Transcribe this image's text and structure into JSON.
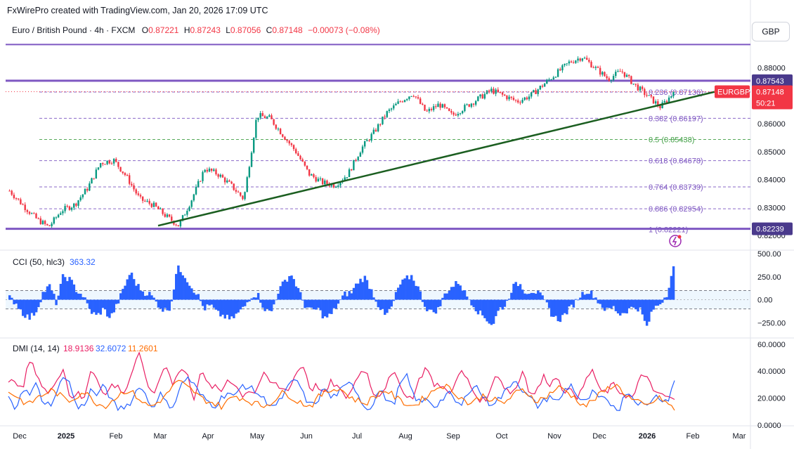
{
  "header": {
    "credit": "FxWirePro created with TradingView.com, Jan 20, 2026 17:09 UTC"
  },
  "symbol": {
    "name": "Euro / British Pound · 4h · FXCM",
    "o_label": "O",
    "o": "0.87221",
    "h_label": "H",
    "h": "0.87243",
    "l_label": "L",
    "l": "0.87056",
    "c_label": "C",
    "c": "0.87148",
    "change": "−0.00073 (−0.08%)"
  },
  "currency_button": "GBP",
  "colors": {
    "candle_up": "#089981",
    "candle_down": "#f23645",
    "trendline": "#1b5e20",
    "level_line": "#7e57c2",
    "cci": "#2962ff",
    "dmi_plus": "#2962ff",
    "dmi_minus": "#e91e63",
    "adx": "#ff6d00"
  },
  "chart_data": [
    {
      "type": "candlestick",
      "title": "Euro / British Pound · 4h · FXCM",
      "yaxis": {
        "ticks": [
          0.82,
          0.83,
          0.84,
          0.85,
          0.86,
          0.88
        ],
        "tick_labels": [
          "0.82000",
          "0.83000",
          "0.84000",
          "0.85000",
          "0.86000",
          "0.88000"
        ],
        "ylim": [
          0.8175,
          0.8905
        ]
      },
      "xaxis": {
        "tick_labels": [
          "Dec",
          "2025",
          "Feb",
          "Mar",
          "Apr",
          "May",
          "Jun",
          "Jul",
          "Aug",
          "Sep",
          "Oct",
          "Nov",
          "Dec",
          "2026",
          "Feb",
          "Mar"
        ]
      },
      "price_path": [
        0.836,
        0.831,
        0.8262,
        0.823,
        0.829,
        0.831,
        0.837,
        0.846,
        0.847,
        0.841,
        0.833,
        0.831,
        0.827,
        0.8235,
        0.833,
        0.844,
        0.842,
        0.838,
        0.833,
        0.863,
        0.862,
        0.856,
        0.85,
        0.842,
        0.839,
        0.838,
        0.842,
        0.851,
        0.857,
        0.864,
        0.868,
        0.871,
        0.864,
        0.867,
        0.863,
        0.866,
        0.869,
        0.872,
        0.87,
        0.868,
        0.87,
        0.874,
        0.878,
        0.882,
        0.884,
        0.88,
        0.876,
        0.879,
        0.874,
        0.87,
        0.866,
        0.871
      ],
      "horizontal_levels": [
        {
          "label": "0.87543",
          "value": 0.87543
        },
        {
          "label": "0.82239",
          "value": 0.82239
        }
      ],
      "upper_line_value": 0.8884,
      "fibonacci": [
        {
          "label": "0.236 (0.87136)",
          "value": 0.87136
        },
        {
          "label": "0.382 (0.86197)",
          "value": 0.86197
        },
        {
          "label": "0.5 (0.85438)",
          "value": 0.85438
        },
        {
          "label": "0.618 (0.84678)",
          "value": 0.84678
        },
        {
          "label": "0.764 (0.83739)",
          "value": 0.83739
        },
        {
          "label": "0.886 (0.82954)",
          "value": 0.82954
        },
        {
          "label": "1 (0.82221)",
          "value": 0.82221
        }
      ],
      "trendline": {
        "start_value": 0.8235,
        "end_value": 0.8715
      },
      "last_price": {
        "symbol": "EURGBP",
        "value": 0.87148,
        "label": "0.87148",
        "countdown": "50:21"
      }
    },
    {
      "type": "line",
      "title": "CCI (50, hlc3)",
      "value_label": "363.32",
      "yaxis": {
        "tick_labels": [
          "500.00",
          "250.00",
          "0.00",
          "−250.00"
        ],
        "ylim": [
          -400,
          500
        ]
      },
      "band": [
        100,
        -100
      ],
      "series": [
        {
          "values": [
            20,
            -40,
            -150,
            -200,
            -120,
            80,
            150,
            -40,
            260,
            220,
            100,
            40,
            -120,
            -180,
            -100,
            -200,
            -60,
            120,
            300,
            160,
            80,
            60,
            -40,
            -120,
            -80,
            350,
            280,
            150,
            60,
            -100,
            -60,
            -150,
            -180,
            -220,
            -150,
            -80,
            40,
            60,
            -100,
            -140,
            80,
            200,
            280,
            120,
            -60,
            -120,
            -100,
            -200,
            -160,
            -40,
            60,
            80,
            200,
            240,
            100,
            -60,
            -180,
            -80,
            140,
            220,
            260,
            120,
            -80,
            -140,
            -100,
            80,
            140,
            200,
            60,
            -40,
            -140,
            -200,
            -280,
            -100,
            -60,
            140,
            180,
            80,
            100,
            60,
            -40,
            -180,
            -220,
            -140,
            -60,
            40,
            100,
            60,
            -40,
            -120,
            -80,
            -160,
            -120,
            -80,
            -100,
            -300,
            -100,
            -40,
            60,
            363
          ]
        }
      ]
    },
    {
      "type": "line",
      "title": "DMI (14, 14)",
      "yaxis": {
        "tick_labels": [
          "60.0000",
          "40.0000",
          "20.0000",
          "0.0000"
        ],
        "ylim": [
          -0.5,
          63
        ]
      },
      "series": [
        {
          "name": "18.9136",
          "color": "#e91e63",
          "values": [
            30,
            35,
            24,
            48,
            40,
            28,
            22,
            35,
            42,
            20,
            24,
            18,
            42,
            35,
            20,
            30,
            28,
            24,
            40,
            52,
            36,
            20,
            35,
            45,
            30,
            42,
            38,
            20,
            40,
            30,
            28,
            25,
            35,
            30,
            22,
            26,
            24,
            38,
            32,
            30,
            26,
            28,
            40,
            44,
            26,
            30,
            22,
            32,
            28,
            20,
            26,
            38,
            42,
            25,
            22,
            30,
            38,
            32,
            20,
            22,
            36,
            44,
            28,
            30,
            24,
            30,
            40,
            32,
            22,
            18,
            22,
            40,
            30,
            24,
            28,
            42,
            22,
            26,
            36,
            30,
            38,
            22,
            28,
            20,
            32,
            42,
            26,
            24,
            30,
            25,
            22,
            20,
            35,
            38,
            22,
            24,
            20,
            19
          ]
        },
        {
          "name": "32.6072",
          "color": "#2962ff",
          "values": [
            20,
            12,
            28,
            22,
            30,
            18,
            15,
            22,
            38,
            30,
            12,
            15,
            26,
            22,
            30,
            18,
            12,
            14,
            18,
            30,
            22,
            12,
            24,
            16,
            14,
            28,
            36,
            30,
            22,
            18,
            14,
            20,
            25,
            20,
            30,
            28,
            25,
            20,
            16,
            14,
            22,
            30,
            34,
            22,
            14,
            18,
            28,
            20,
            24,
            28,
            32,
            22,
            12,
            15,
            26,
            20,
            14,
            30,
            36,
            22,
            16,
            20,
            14,
            18,
            24,
            18,
            14,
            26,
            30,
            22,
            16,
            18,
            22,
            30,
            34,
            24,
            20,
            14,
            18,
            22,
            16,
            26,
            30,
            20,
            16,
            24,
            20,
            18,
            15,
            12,
            26,
            20,
            16,
            14,
            22,
            20,
            18,
            33
          ]
        },
        {
          "name": "11.2601",
          "color": "#ff6d00",
          "values": [
            25,
            22,
            18,
            15,
            20,
            22,
            26,
            24,
            20,
            18,
            22,
            25,
            20,
            16,
            14,
            18,
            22,
            26,
            24,
            20,
            15,
            14,
            18,
            22,
            30,
            32,
            28,
            25,
            20,
            18,
            16,
            14,
            18,
            22,
            20,
            18,
            16,
            14,
            16,
            20,
            24,
            22,
            18,
            16,
            14,
            20,
            24,
            26,
            28,
            24,
            20,
            18,
            16,
            20,
            24,
            26,
            22,
            18,
            16,
            14,
            18,
            22,
            26,
            30,
            28,
            24,
            20,
            16,
            18,
            22,
            20,
            18,
            16,
            20,
            24,
            26,
            22,
            18,
            20,
            24,
            28,
            26,
            22,
            18,
            14,
            18,
            22,
            26,
            30,
            28,
            22,
            18,
            16,
            14,
            18,
            20,
            16,
            11
          ]
        }
      ]
    }
  ]
}
